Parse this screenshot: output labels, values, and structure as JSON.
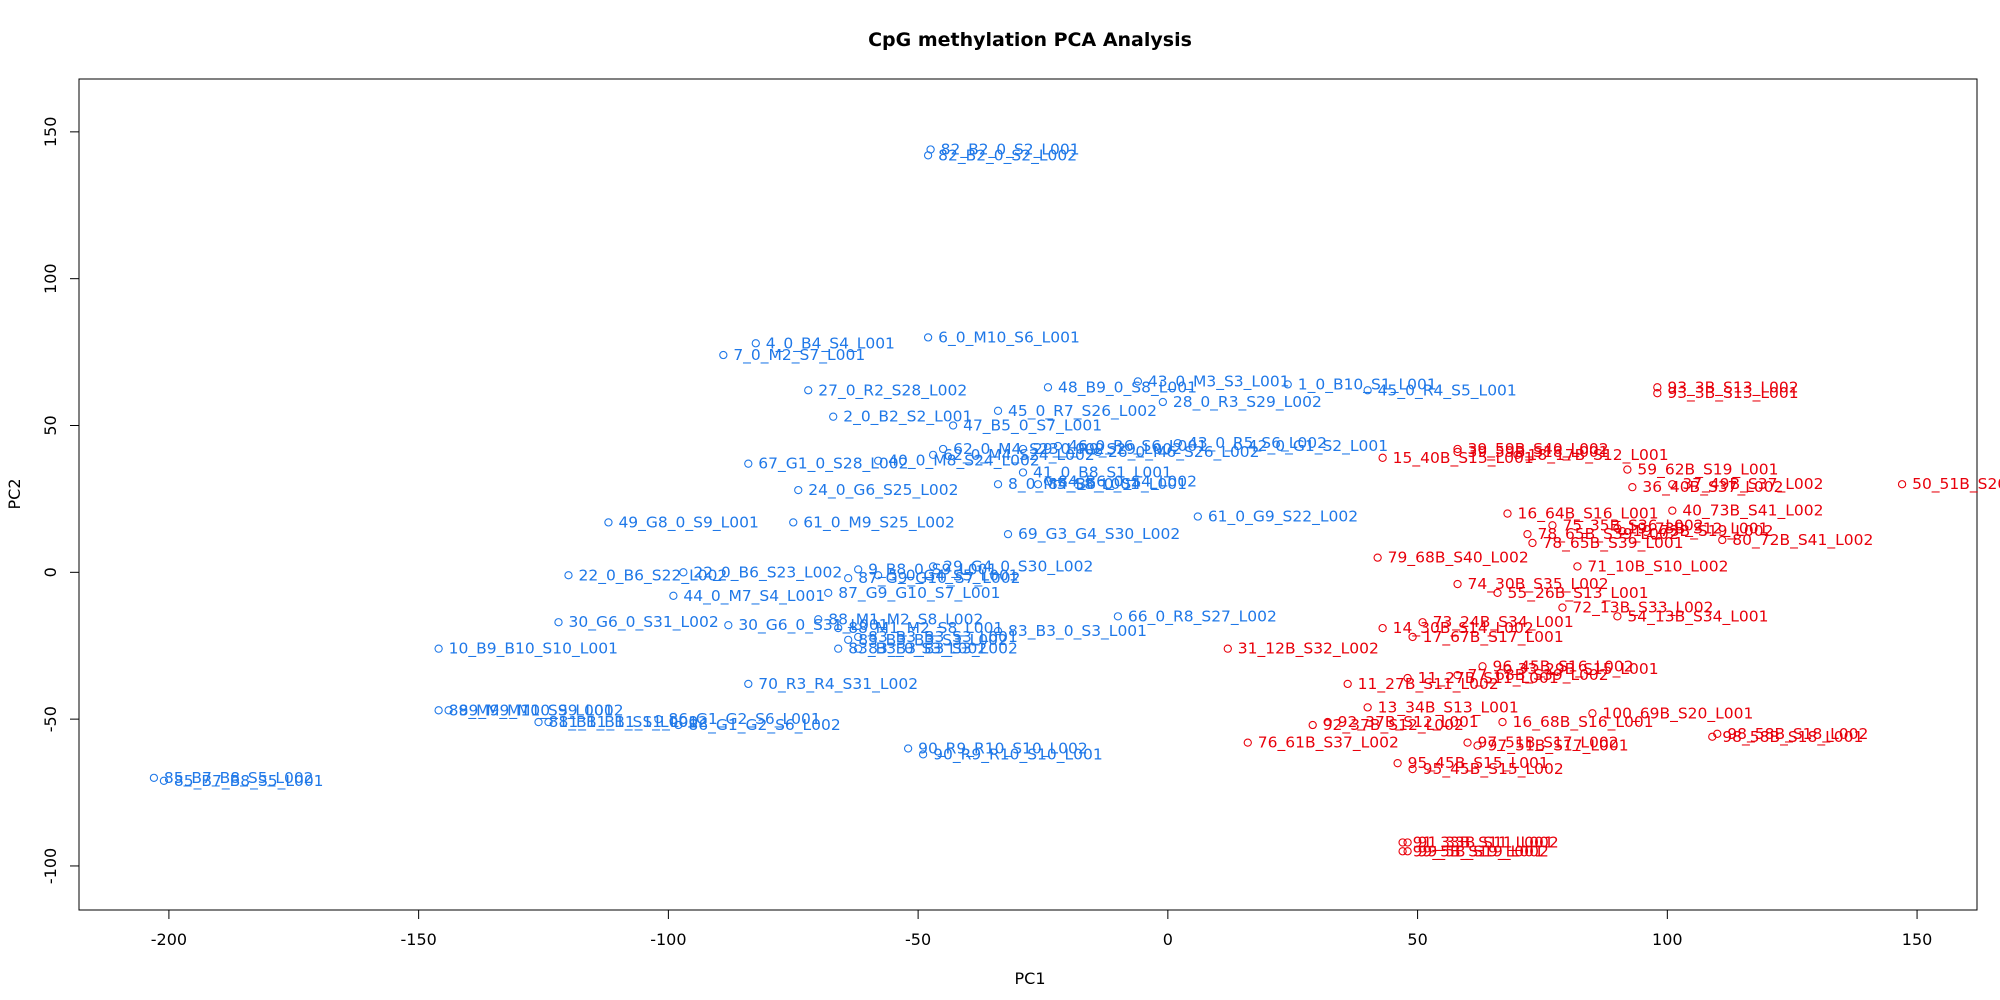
{
  "chart_data": {
    "type": "scatter",
    "title": "CpG methylation PCA Analysis",
    "xlabel": "PC1",
    "ylabel": "PC2",
    "xlim": [
      -218,
      162
    ],
    "ylim": [
      -115,
      168
    ],
    "xticks": [
      -200,
      -150,
      -100,
      -50,
      0,
      50,
      100,
      150
    ],
    "yticks": [
      -100,
      -50,
      0,
      50,
      100,
      150
    ],
    "grid": false,
    "series": [
      {
        "color": "#1f78e8",
        "points": [
          {
            "x": -47.5,
            "y": 144,
            "label": "82_B2_0_S2_L001"
          },
          {
            "x": -48,
            "y": 142,
            "label": "82_B2_0_S2_L002"
          },
          {
            "x": -82.5,
            "y": 78,
            "label": "4_0_B4_S4_L001"
          },
          {
            "x": -89,
            "y": 74,
            "label": "7_0_M2_S7_L001"
          },
          {
            "x": -48,
            "y": 80,
            "label": "6_0_M10_S6_L001"
          },
          {
            "x": -72,
            "y": 62,
            "label": "27_0_R2_S28_L002"
          },
          {
            "x": -24,
            "y": 63,
            "label": "48_B9_0_S8_L001"
          },
          {
            "x": -6,
            "y": 65,
            "label": "43_0_M3_S3_L001"
          },
          {
            "x": 24,
            "y": 64,
            "label": "1_0_B10_S1_L001"
          },
          {
            "x": -1,
            "y": 58,
            "label": "28_0_R3_S29_L002"
          },
          {
            "x": 40,
            "y": 62,
            "label": "45_0_R4_S5_L001"
          },
          {
            "x": -67,
            "y": 53,
            "label": "2_0_B2_S2_L001"
          },
          {
            "x": -34,
            "y": 55,
            "label": "45_0_R7_S26_L002"
          },
          {
            "x": -43,
            "y": 50,
            "label": "47_B5_0_S7_L001"
          },
          {
            "x": -22,
            "y": 43,
            "label": "46_0_R6_S6_L001"
          },
          {
            "x": 2,
            "y": 44,
            "label": "43_0_R5_S6_L002"
          },
          {
            "x": 14,
            "y": 43,
            "label": "42_0_G1_S2_L001"
          },
          {
            "x": -14,
            "y": 41,
            "label": "26_0_M6_S26_L002"
          },
          {
            "x": -45,
            "y": 42,
            "label": "62_0_M4_S23_L002"
          },
          {
            "x": -29,
            "y": 42,
            "label": "29_0_R9_S29_L002"
          },
          {
            "x": -47,
            "y": 40,
            "label": "62_0_M4_S24_L002"
          },
          {
            "x": -84,
            "y": 37,
            "label": "67_G1_0_S28_L002"
          },
          {
            "x": -58,
            "y": 38,
            "label": "40_0_M8_S24_L002"
          },
          {
            "x": -29,
            "y": 34,
            "label": "41_0_B8_S1_L001"
          },
          {
            "x": -34,
            "y": 30,
            "label": "8_0_M5_S8_L001"
          },
          {
            "x": -26,
            "y": 30,
            "label": "84_B6_0_S4_L001"
          },
          {
            "x": -24,
            "y": 31,
            "label": "84_B6_0_S4_L002"
          },
          {
            "x": -74,
            "y": 28,
            "label": "24_0_G6_S25_L002"
          },
          {
            "x": -112,
            "y": 17,
            "label": "49_G8_0_S9_L001"
          },
          {
            "x": -75,
            "y": 17,
            "label": "61_0_M9_S25_L002"
          },
          {
            "x": 6,
            "y": 19,
            "label": "61_0_G9_S22_L002"
          },
          {
            "x": -32,
            "y": 13,
            "label": "69_G3_G4_S30_L002"
          },
          {
            "x": -47,
            "y": 2,
            "label": "29_G4_0_S30_L002"
          },
          {
            "x": -62,
            "y": 1,
            "label": "9_B8_0_S9_L001"
          },
          {
            "x": -97,
            "y": 0,
            "label": "22_0_B6_S23_L002"
          },
          {
            "x": -58,
            "y": -1,
            "label": "5_0_G4_S5_L001"
          },
          {
            "x": -64,
            "y": -2,
            "label": "87_G9_G10_S7_L002"
          },
          {
            "x": -120,
            "y": -1,
            "label": "22_0_B6_S22_L002"
          },
          {
            "x": -99,
            "y": -8,
            "label": "44_0_M7_S4_L001"
          },
          {
            "x": -68,
            "y": -7,
            "label": "87_G9_G10_S7_L001"
          },
          {
            "x": -122,
            "y": -17,
            "label": "30_G6_0_S31_L002"
          },
          {
            "x": -88,
            "y": -18,
            "label": "30_G6_0_S31_L001"
          },
          {
            "x": -70,
            "y": -16,
            "label": "88_M1_M2_S8_L002"
          },
          {
            "x": -66,
            "y": -19,
            "label": "88_M1_M2_S8_L001"
          },
          {
            "x": -62,
            "y": -22,
            "label": "83_B3_B3_S3_L001"
          },
          {
            "x": -64,
            "y": -23,
            "label": "83_B3_B3_S3_L002"
          },
          {
            "x": -34,
            "y": -20,
            "label": "83_B3_0_S3_L001"
          },
          {
            "x": -66,
            "y": -26,
            "label": "83_B3_0_S3_L002"
          },
          {
            "x": -62,
            "y": -26,
            "label": "83_B3_B3_S3_L002"
          },
          {
            "x": -10,
            "y": -15,
            "label": "66_0_R8_S27_L002"
          },
          {
            "x": -146,
            "y": -26,
            "label": "10_B9_B10_S10_L001"
          },
          {
            "x": -84,
            "y": -38,
            "label": "70_R3_R4_S31_L002"
          },
          {
            "x": -146,
            "y": -47,
            "label": "89_M9_M10_S9_L001"
          },
          {
            "x": -144,
            "y": -47,
            "label": "89_M9_M10_S9_L002"
          },
          {
            "x": -126,
            "y": -51,
            "label": "81_B1_B1_S1_L001"
          },
          {
            "x": -124,
            "y": -51,
            "label": "81_B1_B1_S1_L002"
          },
          {
            "x": -102,
            "y": -50,
            "label": "86_G1_G2_S6_L001"
          },
          {
            "x": -98,
            "y": -52,
            "label": "86_G1_G2_S6_L002"
          },
          {
            "x": -52,
            "y": -60,
            "label": "90_R9_R10_S10_L002"
          },
          {
            "x": -49,
            "y": -62,
            "label": "90_R9_R10_S10_L001"
          },
          {
            "x": -203,
            "y": -70,
            "label": "85_B7_B8_S5_L002"
          },
          {
            "x": -201,
            "y": -71,
            "label": "85_B7_B8_S5_L001"
          }
        ]
      },
      {
        "color": "#e8000b",
        "points": [
          {
            "x": 98,
            "y": 63,
            "label": "93_3B_S13_L002"
          },
          {
            "x": 98,
            "y": 61,
            "label": "93_3B_S13_L001"
          },
          {
            "x": 43,
            "y": 39,
            "label": "15_40B_S15_L001"
          },
          {
            "x": 58,
            "y": 42,
            "label": "39_59B_S40_L002"
          },
          {
            "x": 70,
            "y": 40,
            "label": "18_17B_S12_L001"
          },
          {
            "x": 58,
            "y": 41,
            "label": "39_59B_S18_L001"
          },
          {
            "x": 92,
            "y": 35,
            "label": "59_62B_S19_L001"
          },
          {
            "x": 101,
            "y": 30,
            "label": "37_49B_S37_L002"
          },
          {
            "x": 147,
            "y": 30,
            "label": "50_51B_S20_L001"
          },
          {
            "x": 93,
            "y": 29,
            "label": "36_40B_S37_L002"
          },
          {
            "x": 101,
            "y": 21,
            "label": "40_73B_S41_L002"
          },
          {
            "x": 68,
            "y": 20,
            "label": "16_64B_S16_L001"
          },
          {
            "x": 77,
            "y": 16,
            "label": "75_35B_S36_L002"
          },
          {
            "x": 90,
            "y": 15,
            "label": "19_73B_S12_L001"
          },
          {
            "x": 91,
            "y": 14,
            "label": "19_73B_S19_L002"
          },
          {
            "x": 111,
            "y": 11,
            "label": "80_72B_S41_L002"
          },
          {
            "x": 72,
            "y": 13,
            "label": "78_65B_S39_L002"
          },
          {
            "x": 42,
            "y": 5,
            "label": "79_68B_S40_L002"
          },
          {
            "x": 82,
            "y": 2,
            "label": "71_10B_S10_L002"
          },
          {
            "x": 73,
            "y": 10,
            "label": "78_65B_S39_L001"
          },
          {
            "x": 58,
            "y": -4,
            "label": "74_30B_S35_L002"
          },
          {
            "x": 66,
            "y": -7,
            "label": "55_26B_S13_L001"
          },
          {
            "x": 79,
            "y": -12,
            "label": "72_13B_S33_L002"
          },
          {
            "x": 90,
            "y": -15,
            "label": "54_13B_S34_L001"
          },
          {
            "x": 43,
            "y": -19,
            "label": "14_30B_S14_L002"
          },
          {
            "x": 51,
            "y": -17,
            "label": "73_24B_S34_L001"
          },
          {
            "x": 49,
            "y": -22,
            "label": "17_67B_S17_L001"
          },
          {
            "x": 12,
            "y": -26,
            "label": "31_12B_S32_L002"
          },
          {
            "x": 63,
            "y": -32,
            "label": "96_45B_S16_L002"
          },
          {
            "x": 68,
            "y": -33,
            "label": "33_29B_S15_L001"
          },
          {
            "x": 48,
            "y": -36,
            "label": "11_27B_S11_L001"
          },
          {
            "x": 58,
            "y": -35,
            "label": "77_68B_S39_L002"
          },
          {
            "x": 36,
            "y": -38,
            "label": "11_27B_S11_L002"
          },
          {
            "x": 40,
            "y": -46,
            "label": "13_34B_S13_L001"
          },
          {
            "x": 32,
            "y": -51,
            "label": "92_37B_S12_L001"
          },
          {
            "x": 29,
            "y": -52,
            "label": "92_37B_S12_L002"
          },
          {
            "x": 67,
            "y": -51,
            "label": "16_68B_S16_L001"
          },
          {
            "x": 85,
            "y": -48,
            "label": "100_69B_S20_L001"
          },
          {
            "x": 109,
            "y": -56,
            "label": "98_58B_S18_L001"
          },
          {
            "x": 110,
            "y": -55,
            "label": "98_58B_S18_L002"
          },
          {
            "x": 16,
            "y": -58,
            "label": "76_61B_S37_L002"
          },
          {
            "x": 60,
            "y": -58,
            "label": "97_51B_S17_L002"
          },
          {
            "x": 62,
            "y": -59,
            "label": "97_51B_S17_L001"
          },
          {
            "x": 46,
            "y": -65,
            "label": "95_45B_S15_L001"
          },
          {
            "x": 49,
            "y": -67,
            "label": "95_45B_S15_L002"
          },
          {
            "x": 47,
            "y": -92,
            "label": "91_33B_S11_L001"
          },
          {
            "x": 48,
            "y": -92,
            "label": "91_33B_S11_L002"
          },
          {
            "x": 47,
            "y": -95,
            "label": "99_5B_S19_L001"
          },
          {
            "x": 48,
            "y": -95,
            "label": "99_5B_S19_L002"
          }
        ]
      }
    ]
  }
}
